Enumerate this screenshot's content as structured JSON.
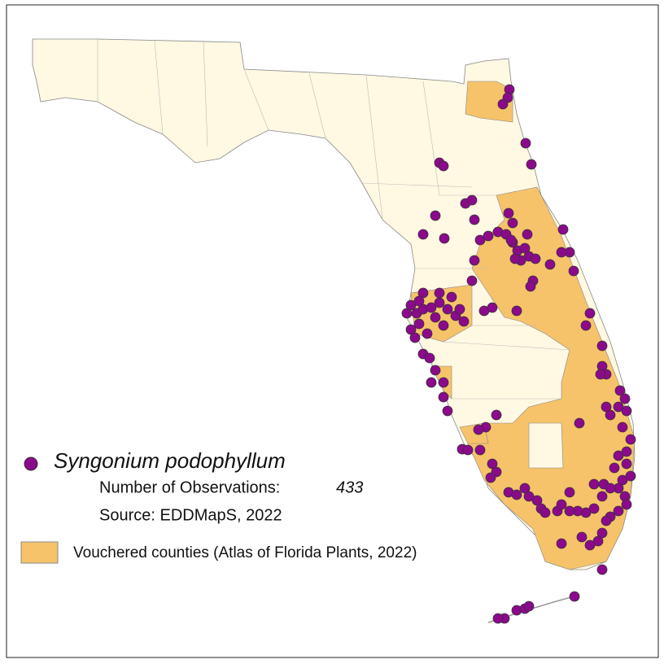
{
  "legend": {
    "species": "Syngonium podophyllum",
    "observations_label": "Number of Observations:",
    "observations_count": 433,
    "source": "Source: EDDMapS, 2022",
    "vouchered": "Vouchered counties (Atlas of Florida Plants, 2022)"
  }
}
